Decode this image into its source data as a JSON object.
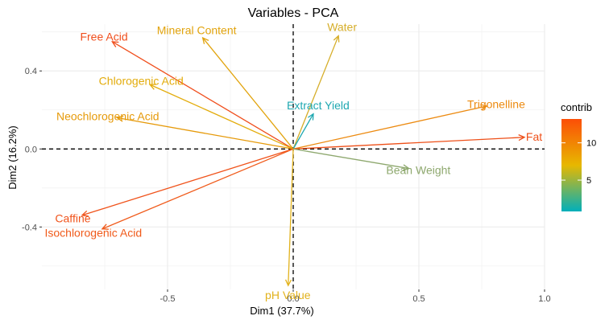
{
  "chart_data": {
    "type": "scatter",
    "title": "Variables - PCA",
    "xlabel": "Dim1 (37.7%)",
    "ylabel": "Dim2 (16.2%)",
    "xlim": [
      -1.0,
      1.0
    ],
    "ylim": [
      -0.72,
      0.64
    ],
    "x_ticks": [
      -0.5,
      0.0,
      0.5,
      1.0
    ],
    "x_tick_labels": [
      "-0.5",
      "0.0",
      "0.5",
      "1.0"
    ],
    "y_ticks": [
      -0.4,
      0.0,
      0.4
    ],
    "y_tick_labels": [
      "-0.4",
      "0.0",
      "0.4"
    ],
    "grid": true,
    "reference_lines": {
      "x": 0,
      "y": 0,
      "style": "dashed"
    },
    "legend": {
      "title": "contrib",
      "placement": "right",
      "min": 0.8,
      "max": 13.2,
      "ticks": [
        5,
        10
      ],
      "tick_labels": [
        "5",
        "10"
      ],
      "colors": [
        "#00AFBB",
        "#E7B800",
        "#FC4E07"
      ]
    },
    "series": [
      {
        "label": "Free Acid",
        "x": -0.72,
        "y": 0.55,
        "contrib": 12.9,
        "color": "#F04E1C"
      },
      {
        "label": "Mineral Content",
        "x": -0.36,
        "y": 0.57,
        "contrib": 8.6,
        "color": "#E2A40E"
      },
      {
        "label": "Water",
        "x": 0.18,
        "y": 0.58,
        "contrib": 7.9,
        "color": "#D6AE2A"
      },
      {
        "label": "Chlorogenic Acid",
        "x": -0.57,
        "y": 0.33,
        "contrib": 8.5,
        "color": "#E3AC0C"
      },
      {
        "label": "Neochlorogenic Acid",
        "x": -0.7,
        "y": 0.16,
        "contrib": 9.5,
        "color": "#E69A0A"
      },
      {
        "label": "Extract Yield",
        "x": 0.08,
        "y": 0.18,
        "contrib": 1.5,
        "color": "#1FA8B1"
      },
      {
        "label": "Trigonelline",
        "x": 0.77,
        "y": 0.22,
        "contrib": 11.0,
        "color": "#EC8A10"
      },
      {
        "label": "Fat",
        "x": 0.92,
        "y": 0.06,
        "contrib": 13.0,
        "color": "#EE4F18"
      },
      {
        "label": "Bean Weight",
        "x": 0.46,
        "y": -0.1,
        "contrib": 3.8,
        "color": "#8EA86E"
      },
      {
        "label": "Caffine",
        "x": -0.84,
        "y": -0.34,
        "contrib": 12.8,
        "color": "#F0531B"
      },
      {
        "label": "Isochlorogenic Acid",
        "x": -0.76,
        "y": -0.41,
        "contrib": 12.3,
        "color": "#F05A1A"
      },
      {
        "label": "pH Value",
        "x": -0.02,
        "y": -0.7,
        "contrib": 7.8,
        "color": "#E2B21C"
      }
    ]
  }
}
